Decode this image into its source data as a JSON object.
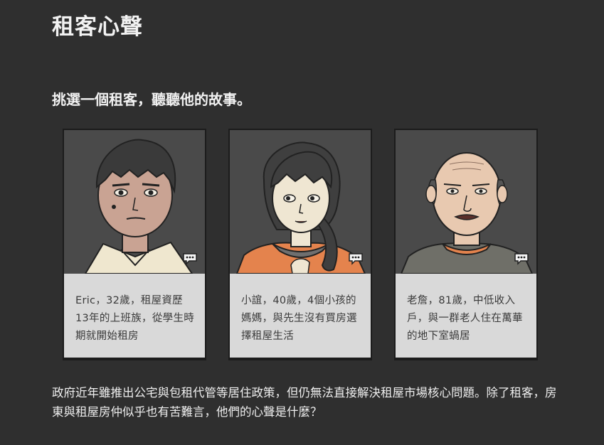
{
  "header": {
    "title": "租客心聲"
  },
  "section": {
    "prompt": "挑選一個租客，聽聽他的故事。"
  },
  "cards": [
    {
      "caption": "Eric，32歲，租屋資歷13年的上班族，從學生時期就開始租房",
      "icon": "chat-bubble-icon"
    },
    {
      "caption": "小誼，40歲，4個小孩的媽媽，與先生沒有買房選擇租屋生活",
      "icon": "chat-bubble-icon"
    },
    {
      "caption": "老詹，81歲，中低收入戶，與一群老人住在萬華的地下室蝸居",
      "icon": "chat-bubble-icon"
    }
  ],
  "footer": {
    "paragraph": "政府近年雖推出公宅與包租代管等居住政策，但仍無法直接解決租屋市場核心問題。除了租客，房東與租屋房仲似乎也有苦難言，他們的心聲是什麼？"
  },
  "colors": {
    "background": "#2f2f2f",
    "card_caption_bg": "#d9d9d9",
    "portrait_bg": "#4a4a4a"
  }
}
